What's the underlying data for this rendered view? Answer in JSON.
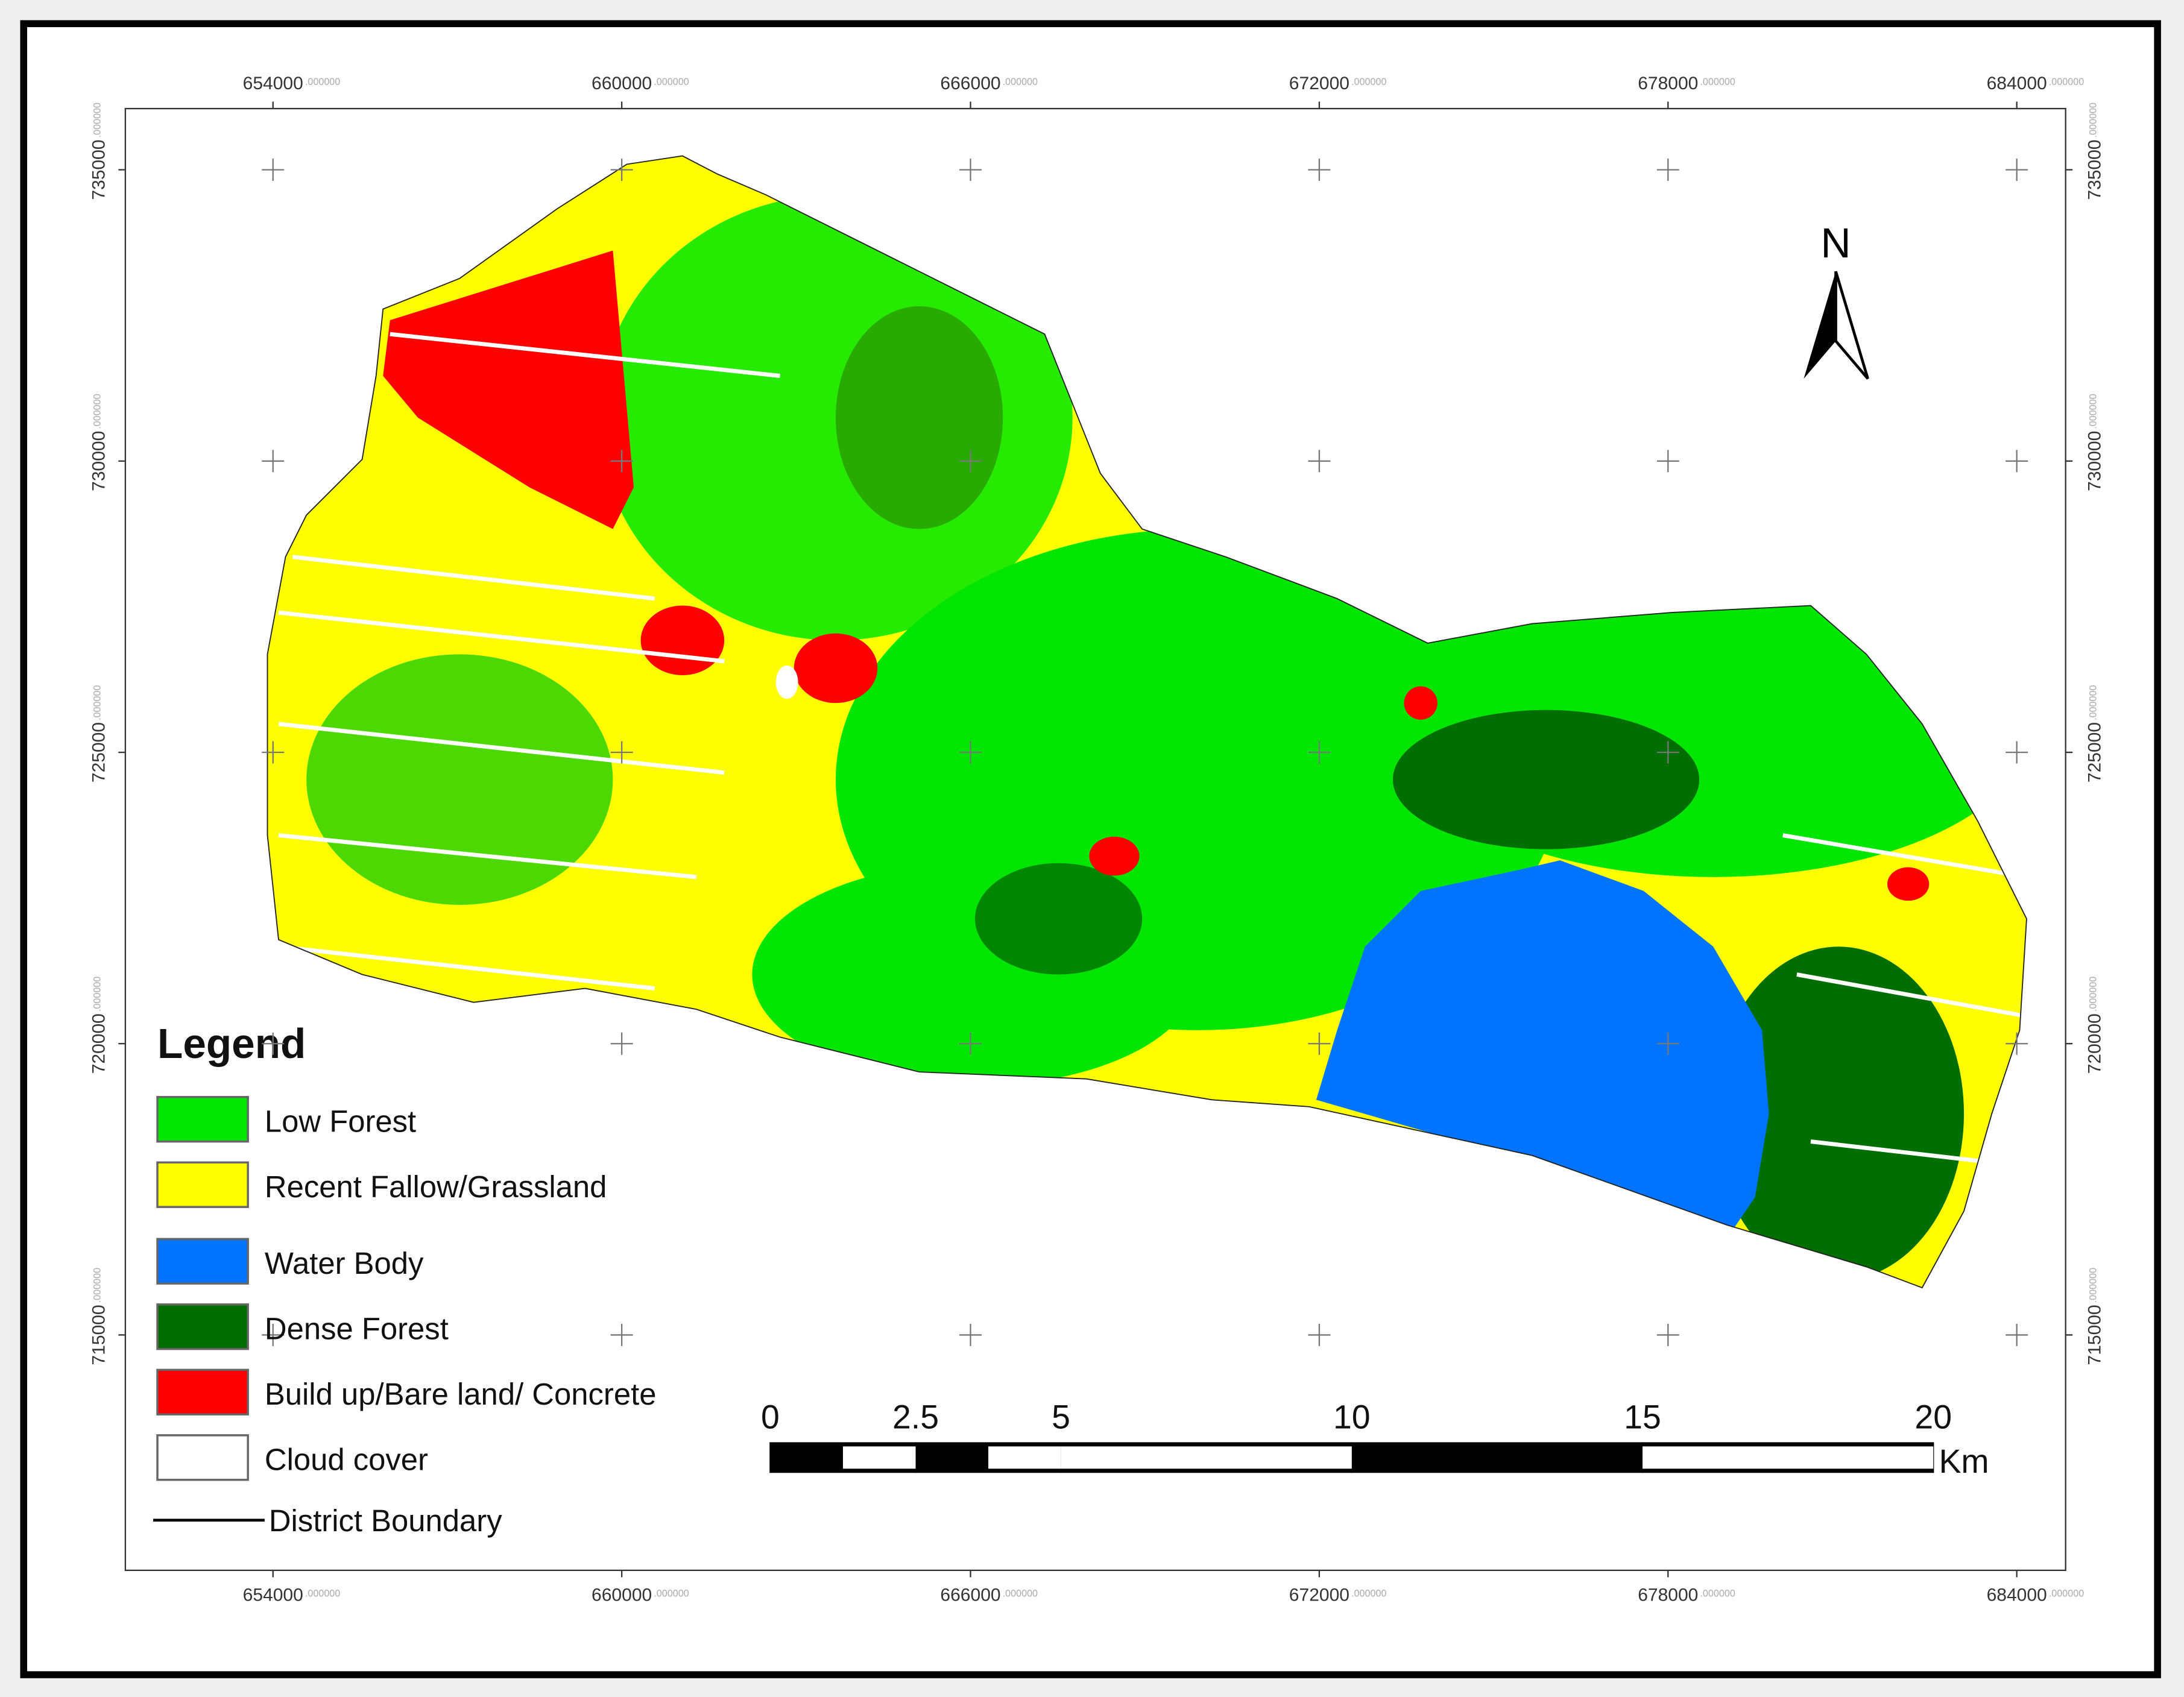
{
  "map": {
    "xticks": [
      654000,
      660000,
      666000,
      672000,
      678000,
      684000
    ],
    "yticks": [
      735000,
      730000,
      725000,
      720000,
      715000
    ],
    "xlim": [
      651460,
      684840
    ],
    "ylim": [
      710960,
      736050
    ],
    "decimal_suffix": ".000000",
    "north": "N",
    "legend": {
      "title": "Legend",
      "items": [
        {
          "name": "Low Forest",
          "color": "#00e600"
        },
        {
          "name": "Recent Fallow/Grassland",
          "color": "#ffff00"
        },
        {
          "name": "Water Body",
          "color": "#0073ff"
        },
        {
          "name": "Dense Forest",
          "color": "#006e00"
        },
        {
          "name": "Build up/Bare land/ Concrete",
          "color": "#ff0000"
        },
        {
          "name": "Cloud cover",
          "color": "#ffffff"
        }
      ],
      "boundary": "District Boundary"
    },
    "scale_bar": {
      "labels": [
        0,
        2.5,
        5,
        10,
        15,
        20
      ],
      "unit": "Km"
    }
  }
}
